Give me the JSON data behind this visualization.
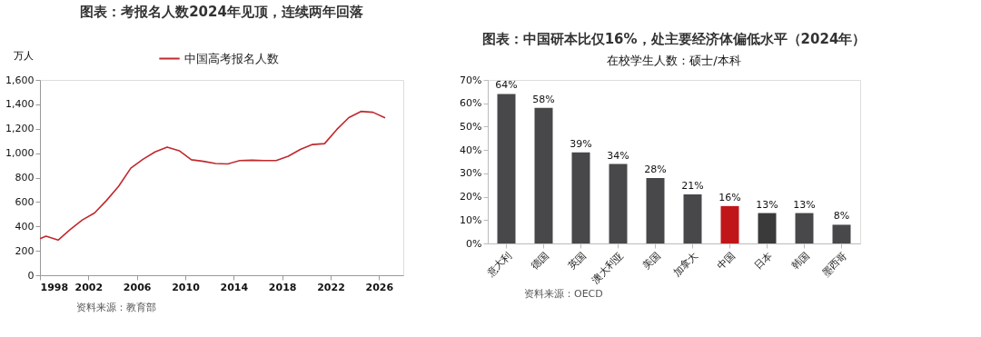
{
  "chart_data": [
    {
      "type": "line",
      "title": "图表：考报名人数2024年见顶，连续两年回落",
      "ylabel": "万人",
      "x": [
        1998,
        1998.5,
        1999.5,
        2000.5,
        2001.5,
        2002.5,
        2003.5,
        2004.5,
        2005.5,
        2006.5,
        2007.5,
        2008.5,
        2009.5,
        2010.5,
        2011.5,
        2012.5,
        2013.5,
        2014.5,
        2015.5,
        2016.5,
        2017.5,
        2018.5,
        2019.5,
        2020.5,
        2021.5,
        2022.5,
        2023.5,
        2024.5,
        2025.5,
        2026.5
      ],
      "series": [
        {
          "name": "中国高考报名人数",
          "color": "#c0282d",
          "values": [
            300,
            320,
            288,
            375,
            453,
            510,
            613,
            729,
            877,
            950,
            1010,
            1050,
            1020,
            946,
            933,
            915,
            912,
            939,
            942,
            940,
            940,
            975,
            1031,
            1071,
            1078,
            1193,
            1291,
            1342,
            1335,
            1290
          ]
        }
      ],
      "xlim": [
        1998,
        2028
      ],
      "xticks": [
        1998,
        2002,
        2006,
        2010,
        2014,
        2018,
        2022,
        2026
      ],
      "ylim": [
        0,
        1600
      ],
      "yticks": [
        {
          "value": 0,
          "label": "0"
        },
        {
          "value": 200,
          "label": "200"
        },
        {
          "value": 400,
          "label": "400"
        },
        {
          "value": 600,
          "label": "600"
        },
        {
          "value": 800,
          "label": "800"
        },
        {
          "value": 1000,
          "label": "1,000"
        },
        {
          "value": 1200,
          "label": "1,200"
        },
        {
          "value": 1400,
          "label": "1,400"
        },
        {
          "value": 1600,
          "label": "1,600"
        }
      ],
      "legend": "top",
      "grid": false,
      "marker": "none",
      "line_style": "solid",
      "annotations": [
        "资料来源：教育部"
      ]
    },
    {
      "type": "bar",
      "title": "图表：中国研本比仅16%，处主要经济体偏低水平（2024年）",
      "subtitle": "在校学生人数：硕士/本科",
      "categories": [
        "意大利",
        "德国",
        "英国",
        "澳大利亚",
        "美国",
        "加拿大",
        "中国",
        "日本",
        "韩国",
        "墨西哥"
      ],
      "values": [
        64,
        58,
        39,
        34,
        28,
        21,
        16,
        13,
        13,
        8
      ],
      "colors": [
        "#48484a",
        "#48484a",
        "#48484a",
        "#48484a",
        "#48484a",
        "#48484a",
        "#c0161a",
        "#3a3a3a",
        "#48484a",
        "#48484a"
      ],
      "value_labels": [
        "64%",
        "58%",
        "39%",
        "34%",
        "28%",
        "21%",
        "16%",
        "13%",
        "13%",
        "8%"
      ],
      "ylim": [
        0,
        70
      ],
      "yticks": [
        {
          "value": 0,
          "label": "0%"
        },
        {
          "value": 10,
          "label": "10%"
        },
        {
          "value": 20,
          "label": "20%"
        },
        {
          "value": 30,
          "label": "30%"
        },
        {
          "value": 40,
          "label": "40%"
        },
        {
          "value": 50,
          "label": "50%"
        },
        {
          "value": 60,
          "label": "60%"
        },
        {
          "value": 70,
          "label": "70%"
        }
      ],
      "grid": false,
      "legend": false,
      "annotations": [
        "资料来源：OECD"
      ]
    }
  ]
}
